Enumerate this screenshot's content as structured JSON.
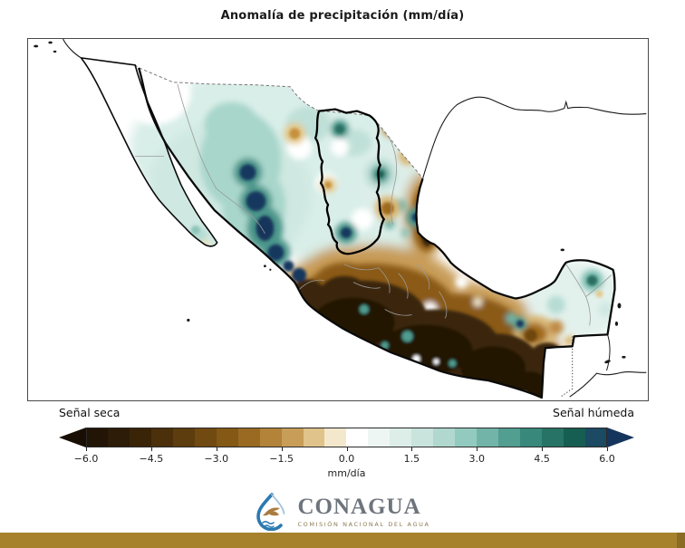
{
  "title": "Anomalía de precipitación (mm/día)",
  "colorbar": {
    "label_left": "Señal seca",
    "label_right": "Señal húmeda",
    "unit": "mm/día",
    "ticks": [
      "−6.0",
      "−4.5",
      "−3.0",
      "−1.5",
      "0.0",
      "1.5",
      "3.0",
      "4.5",
      "6.0"
    ],
    "segment_colors": [
      "#231505",
      "#2d1c07",
      "#3a2408",
      "#4b300b",
      "#5d3d0e",
      "#704a11",
      "#845815",
      "#9a6a22",
      "#b28339",
      "#c89d58",
      "#dfc38b",
      "#f3e8cc",
      "#ffffff",
      "#eef6f3",
      "#ddeee9",
      "#c9e4dd",
      "#b0d8cf",
      "#93cabf",
      "#72b5a8",
      "#529e91",
      "#38897c",
      "#277466",
      "#175e52",
      "#1c4a62"
    ],
    "left_arrow_color": "#190e03",
    "right_arrow_color": "#16355c"
  },
  "logo": {
    "name": "CONAGUA",
    "subtitle": "COMISIÓN NACIONAL DEL AGUA"
  },
  "footer": {
    "bar_color": "#a5822b",
    "bar_cap_color": "#8a6c22"
  },
  "chart_data": {
    "type": "filled_contour_map",
    "region": "México",
    "variable": "Anomalía de precipitación",
    "unit": "mm/día",
    "scale_range": [
      -6,
      6
    ],
    "scale_ticks": [
      -6.0,
      -4.5,
      -3.0,
      -1.5,
      0.0,
      1.5,
      3.0,
      4.5,
      6.0
    ],
    "legend": {
      "dry": "Señal seca",
      "wet": "Señal húmeda"
    },
    "pattern_summary": [
      {
        "area": "Noroeste (Sonora, Chihuahua, Sinaloa, Durango)",
        "anomaly_mm_dia": "+1.5 a +6.0"
      },
      {
        "area": "Península de Baja California",
        "anomaly_mm_dia": "≈ 0"
      },
      {
        "area": "Noreste (cuenca resaltada con contorno grueso)",
        "anomaly_mm_dia": "0 a +3.0 con núcleos −1.5"
      },
      {
        "area": "Centro y sur (Jalisco a Veracruz, Oaxaca, Chiapas)",
        "anomaly_mm_dia": "−3.0 a −6.0"
      },
      {
        "area": "Península de Yucatán",
        "anomaly_mm_dia": "0 a +3.0; manchas −1.5 a −3.0 en Campeche"
      }
    ]
  }
}
